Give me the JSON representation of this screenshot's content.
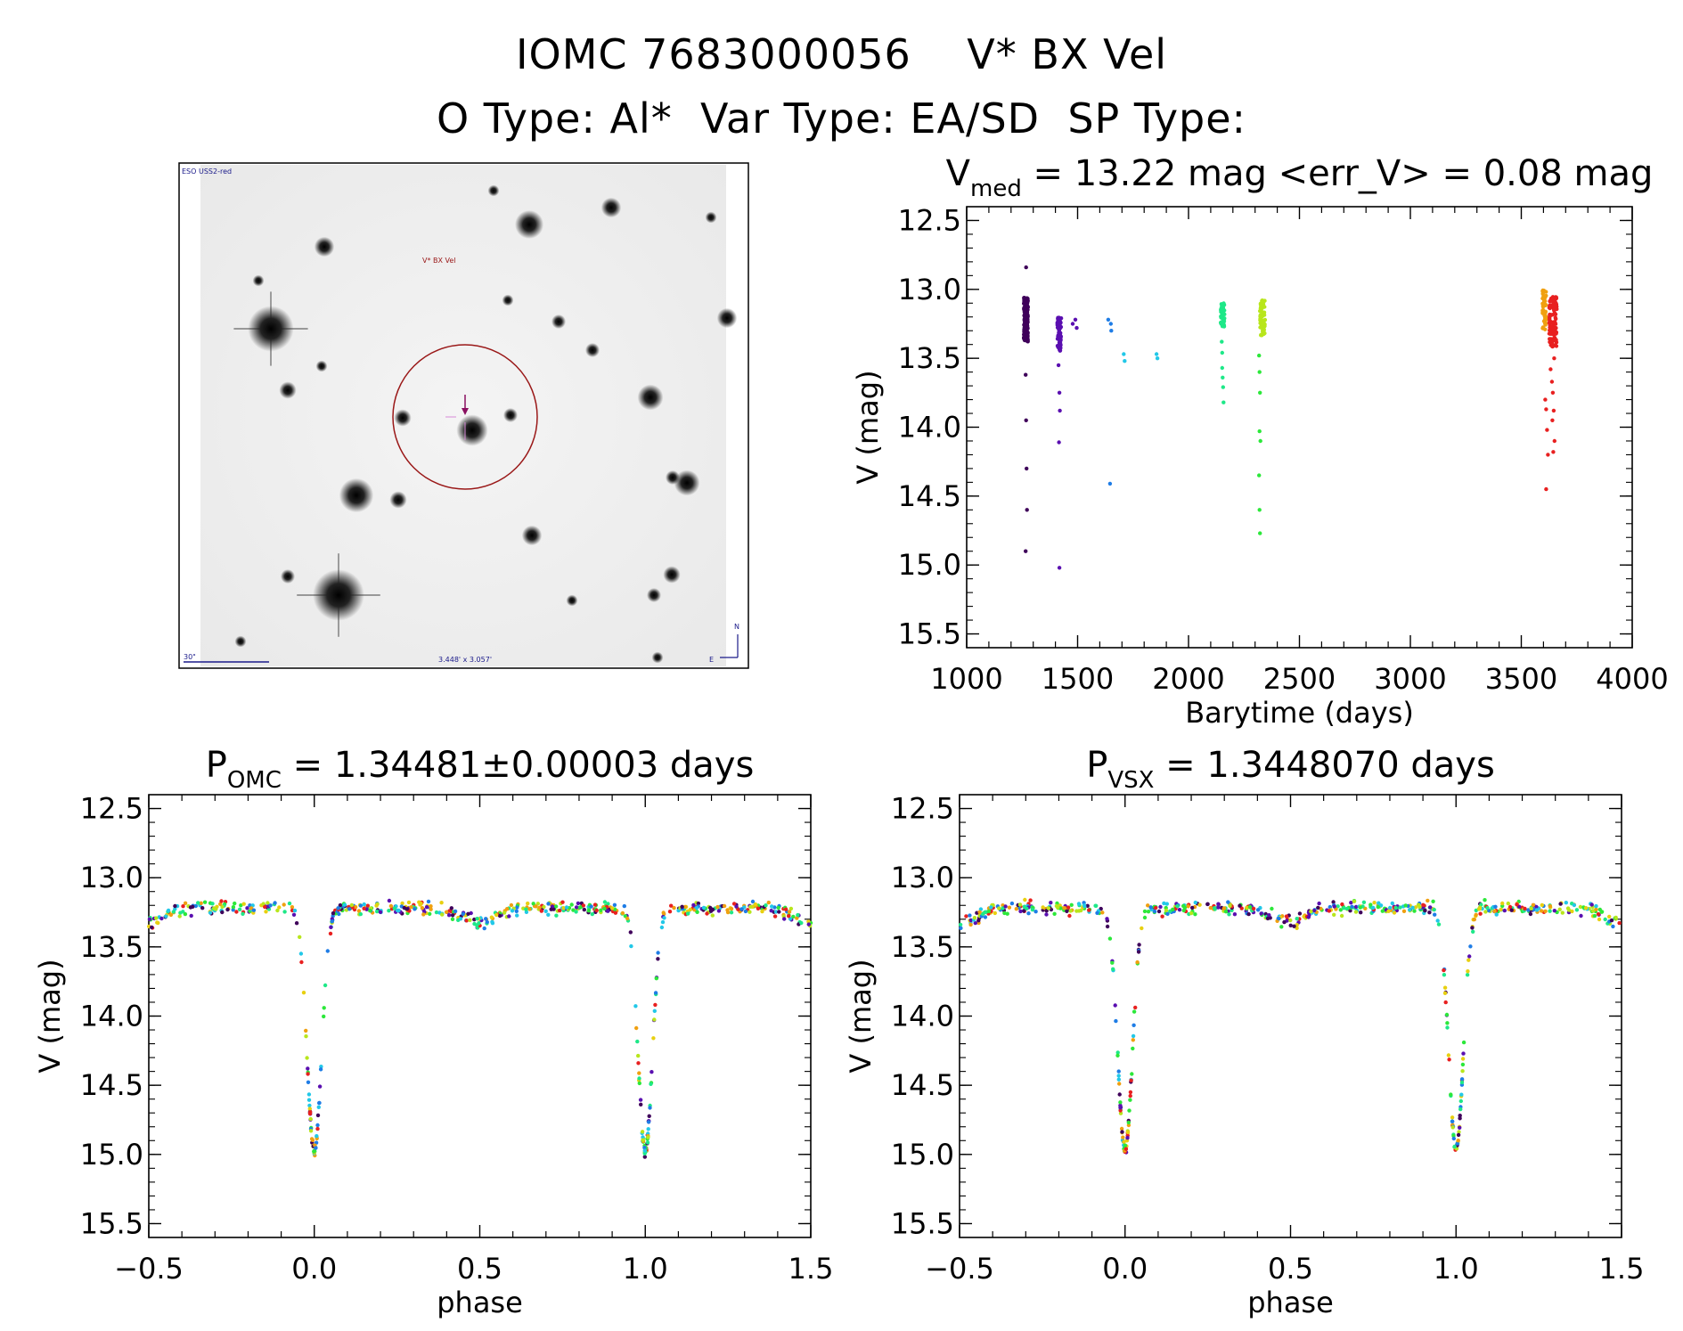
{
  "header": {
    "line1": "IOMC 7683000056    V* BX Vel",
    "line2": "O Type: Al*  Var Type: EA/SD  SP Type:"
  },
  "thumbnail": {
    "survey": "ESO USS2-red",
    "target_label": "V* BX Vel",
    "scale_label": "30\"",
    "size_label": "3.448' x 3.057'",
    "north": "N",
    "east": "E"
  },
  "chart_data": [
    {
      "id": "lightcurve",
      "type": "scatter",
      "title": "V",
      "title_sub": "med",
      "title_rest": " = 13.22 mag <err_V> = 0.08 mag",
      "xlabel": "Barytime (days)",
      "ylabel": "V (mag)",
      "xlim": [
        1000,
        4000
      ],
      "ylim": [
        15.6,
        12.4
      ],
      "xticks": [
        1000,
        1500,
        2000,
        2500,
        3000,
        3500,
        4000
      ],
      "yticks": [
        12.5,
        13.0,
        13.5,
        14.0,
        14.5,
        15.0,
        15.5
      ],
      "series": [
        {
          "name": "epoch1",
          "color": "#3f005a",
          "x": [
            1262,
            1264,
            1266,
            1268,
            1270,
            1272,
            1266,
            1268
          ],
          "y": [
            13.18,
            13.35,
            13.62,
            13.95,
            14.3,
            14.6,
            14.9,
            12.84
          ],
          "band": {
            "x0": 1258,
            "x1": 1276,
            "y0": 13.06,
            "y1": 13.38,
            "n": 220
          }
        },
        {
          "name": "epoch2",
          "color": "#5a0fb0",
          "x": [
            1414,
            1418,
            1420,
            1416,
            1418,
            1478,
            1490,
            1496
          ],
          "y": [
            13.55,
            13.75,
            13.88,
            14.11,
            15.02,
            13.25,
            13.22,
            13.28
          ],
          "band": {
            "x0": 1408,
            "x1": 1426,
            "y0": 13.2,
            "y1": 13.45,
            "n": 70
          }
        },
        {
          "name": "epoch3",
          "color": "#1f7de6",
          "x": [
            1638,
            1650,
            1652,
            1646
          ],
          "y": [
            13.22,
            13.25,
            13.3,
            14.41
          ],
          "band": null
        },
        {
          "name": "epoch4",
          "color": "#22c8e8",
          "x": [
            1708,
            1712,
            1856,
            1860
          ],
          "y": [
            13.47,
            13.52,
            13.47,
            13.5
          ],
          "band": null
        },
        {
          "name": "epoch5",
          "color": "#1ee888",
          "x": [
            2150,
            2152,
            2154,
            2156,
            2158,
            2152
          ],
          "y": [
            13.38,
            13.46,
            13.64,
            13.71,
            13.82,
            13.57
          ],
          "band": {
            "x0": 2145,
            "x1": 2162,
            "y0": 13.1,
            "y1": 13.27,
            "n": 45
          }
        },
        {
          "name": "epoch6",
          "color": "#2ce83a",
          "x": [
            2318,
            2320,
            2322,
            2320,
            2324,
            2318,
            2320,
            2322
          ],
          "y": [
            13.48,
            13.6,
            13.75,
            14.03,
            14.1,
            14.35,
            14.6,
            14.77
          ],
          "band": null
        },
        {
          "name": "epoch7",
          "color": "#b8e61c",
          "x": [],
          "y": [],
          "band": {
            "x0": 2322,
            "x1": 2345,
            "y0": 13.08,
            "y1": 13.34,
            "n": 60
          }
        },
        {
          "name": "epoch8",
          "color": "#f0a010",
          "x": [],
          "y": [],
          "band": {
            "x0": 3596,
            "x1": 3612,
            "y0": 13.0,
            "y1": 13.3,
            "n": 50
          }
        },
        {
          "name": "epoch9",
          "color": "#e82020",
          "x": [
            3608,
            3612,
            3616,
            3620,
            3632,
            3638,
            3642,
            3646,
            3650,
            3644,
            3640,
            3648,
            3612
          ],
          "y": [
            13.8,
            13.87,
            14.02,
            14.2,
            13.58,
            13.67,
            13.75,
            13.88,
            14.1,
            14.18,
            13.95,
            13.5,
            14.45
          ],
          "band": {
            "x0": 3626,
            "x1": 3660,
            "y0": 13.05,
            "y1": 13.42,
            "n": 110
          }
        }
      ]
    },
    {
      "id": "fold_omc",
      "type": "scatter",
      "title": "P",
      "title_sub": "OMC",
      "title_rest": " = 1.34481±0.00003 days",
      "xlabel": "phase",
      "ylabel": "V (mag)",
      "xlim": [
        -0.5,
        1.5
      ],
      "ylim": [
        15.6,
        12.4
      ],
      "xticks": [
        -0.5,
        0.0,
        0.5,
        1.0,
        1.5
      ],
      "xticklabels": [
        "−0.5",
        "0.0",
        "0.5",
        "1.0",
        "1.5"
      ],
      "yticks": [
        12.5,
        13.0,
        13.5,
        14.0,
        14.5,
        15.0,
        15.5
      ],
      "model": {
        "base": 13.22,
        "depth": 1.75,
        "width": 0.022,
        "secondary_depth": 0.1,
        "secondary_width": 0.05,
        "scatter": 0.07
      },
      "colors": [
        "#3f005a",
        "#5a0fb0",
        "#1f7de6",
        "#22c8e8",
        "#1ee888",
        "#2ce83a",
        "#b8e61c",
        "#e8d010",
        "#f0a010",
        "#e82020"
      ]
    },
    {
      "id": "fold_vsx",
      "type": "scatter",
      "title": "P",
      "title_sub": "VSX",
      "title_rest": " = 1.3448070 days",
      "xlabel": "phase",
      "ylabel": "V (mag)",
      "xlim": [
        -0.5,
        1.5
      ],
      "ylim": [
        15.6,
        12.4
      ],
      "xticks": [
        -0.5,
        0.0,
        0.5,
        1.0,
        1.5
      ],
      "xticklabels": [
        "−0.5",
        "0.0",
        "0.5",
        "1.0",
        "1.5"
      ],
      "yticks": [
        12.5,
        13.0,
        13.5,
        14.0,
        14.5,
        15.0,
        15.5
      ],
      "model": {
        "base": 13.22,
        "depth": 1.75,
        "width": 0.022,
        "secondary_depth": 0.1,
        "secondary_width": 0.05,
        "scatter": 0.07
      },
      "colors": [
        "#3f005a",
        "#5a0fb0",
        "#1f7de6",
        "#22c8e8",
        "#1ee888",
        "#2ce83a",
        "#b8e61c",
        "#e8d010",
        "#f0a010",
        "#e82020"
      ]
    }
  ]
}
